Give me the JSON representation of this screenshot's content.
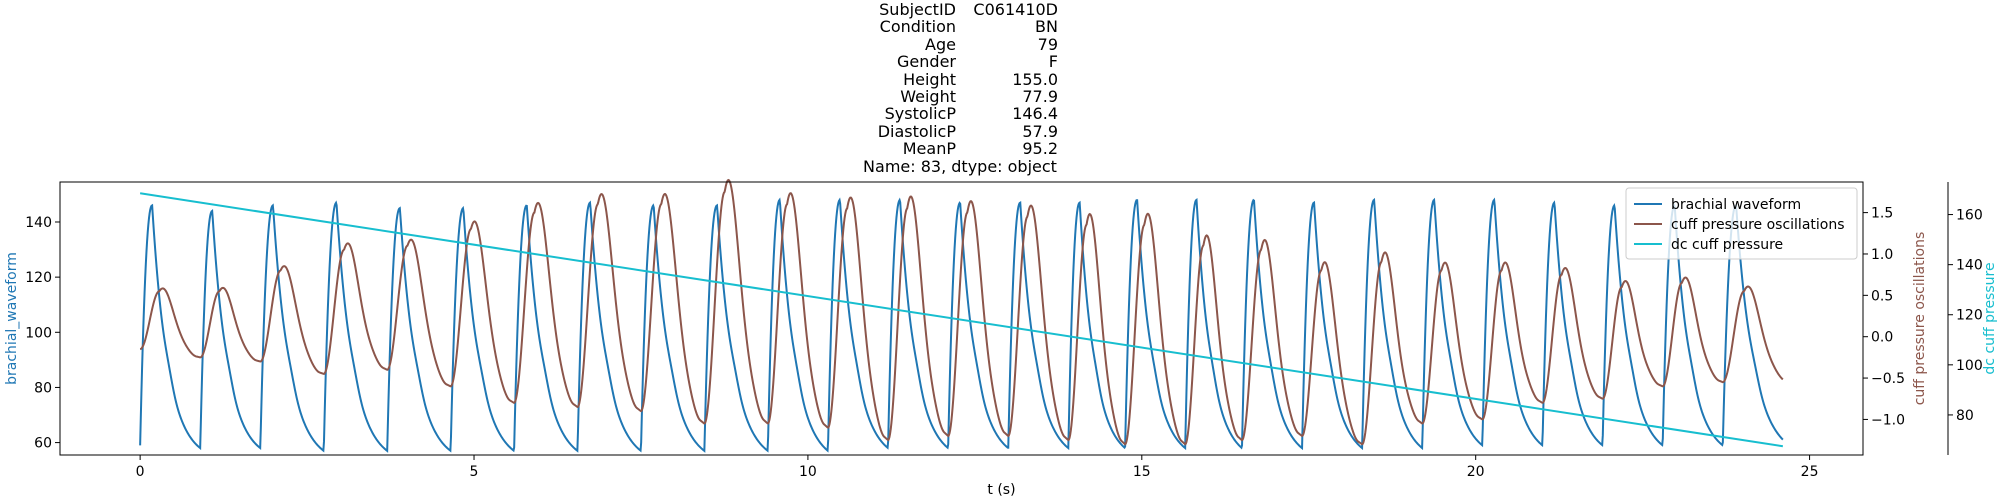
{
  "title": {
    "rows": [
      {
        "key": "SubjectID",
        "value": "C061410D"
      },
      {
        "key": "Condition",
        "value": "BN"
      },
      {
        "key": "Age",
        "value": "79"
      },
      {
        "key": "Gender",
        "value": "F"
      },
      {
        "key": "Height",
        "value": "155.0"
      },
      {
        "key": "Weight",
        "value": "77.9"
      },
      {
        "key": "SystolicP",
        "value": "146.4"
      },
      {
        "key": "DiastolicP",
        "value": "57.9"
      },
      {
        "key": "MeanP",
        "value": "95.2"
      }
    ],
    "footer": "Name: 83, dtype: object"
  },
  "chart_data": {
    "type": "line",
    "xlabel": "t (s)",
    "xlim": [
      -1.2,
      25.8
    ],
    "x_ticks": [
      0,
      5,
      10,
      15,
      20,
      25
    ],
    "axes": {
      "left": {
        "label": "brachial_waveform",
        "color": "#1f77b4",
        "ylim": [
          55.5,
          154.5
        ],
        "ticks": [
          60,
          80,
          100,
          120,
          140
        ]
      },
      "right1": {
        "label": "cuff pressure oscillations",
        "color": "#8c564b",
        "ylim": [
          -1.43,
          1.87
        ],
        "ticks": [
          -1.0,
          -0.5,
          0.0,
          0.5,
          1.0,
          1.5
        ],
        "tick_labels": [
          "−1.0",
          "−0.5",
          "0.0",
          "0.5",
          "1.0",
          "1.5"
        ]
      },
      "right2": {
        "label": "dc cuff pressure",
        "color": "#17becf",
        "ylim": [
          64.0,
          173.0
        ],
        "ticks": [
          80,
          100,
          120,
          140,
          160
        ]
      }
    },
    "legend": {
      "position": "upper right"
    },
    "beats": {
      "onsets": [
        0.0,
        0.9,
        1.8,
        2.75,
        3.7,
        4.65,
        5.6,
        6.55,
        7.5,
        8.45,
        9.4,
        10.3,
        11.2,
        12.1,
        13.0,
        13.9,
        14.75,
        15.65,
        16.5,
        17.4,
        18.3,
        19.2,
        20.1,
        21.0,
        21.9,
        22.8,
        23.7
      ],
      "brachial_peaks": [
        146,
        144,
        146,
        147,
        145,
        145,
        146,
        147,
        146,
        146,
        148,
        148,
        148,
        147,
        147,
        147,
        148,
        148,
        148,
        147,
        148,
        148,
        148,
        147,
        146,
        146,
        146
      ],
      "brachial_troughs": [
        59,
        58,
        58,
        57,
        57,
        57,
        57,
        57,
        57,
        57,
        57,
        57,
        58,
        58,
        58,
        58,
        58,
        58,
        58,
        58,
        58,
        58,
        59,
        59,
        59,
        59,
        59
      ],
      "cuff_amplitudes": [
        0.55,
        0.55,
        0.8,
        1.05,
        1.1,
        1.3,
        1.5,
        1.6,
        1.6,
        1.75,
        1.6,
        1.55,
        1.55,
        1.5,
        1.45,
        1.35,
        1.35,
        1.1,
        1.05,
        0.8,
        0.9,
        0.8,
        0.8,
        0.75,
        0.6,
        0.65,
        0.55
      ],
      "cuff_troughs": [
        -0.15,
        -0.25,
        -0.3,
        -0.45,
        -0.4,
        -0.6,
        -0.8,
        -0.85,
        -0.9,
        -1.05,
        -1.05,
        -1.1,
        -1.25,
        -1.2,
        -1.2,
        -1.25,
        -1.3,
        -1.3,
        -1.25,
        -1.2,
        -1.3,
        -1.05,
        -1.0,
        -0.8,
        -0.75,
        -0.6,
        -0.55
      ],
      "t_end": 24.6
    },
    "series": [
      {
        "name": "brachial waveform",
        "color": "#1f77b4",
        "axis": "left"
      },
      {
        "name": "cuff pressure oscillations",
        "color": "#8c564b",
        "axis": "right1"
      },
      {
        "name": "dc cuff pressure",
        "color": "#17becf",
        "axis": "right2",
        "start": [
          0,
          168.5
        ],
        "end": [
          24.6,
          67.5
        ]
      }
    ]
  }
}
